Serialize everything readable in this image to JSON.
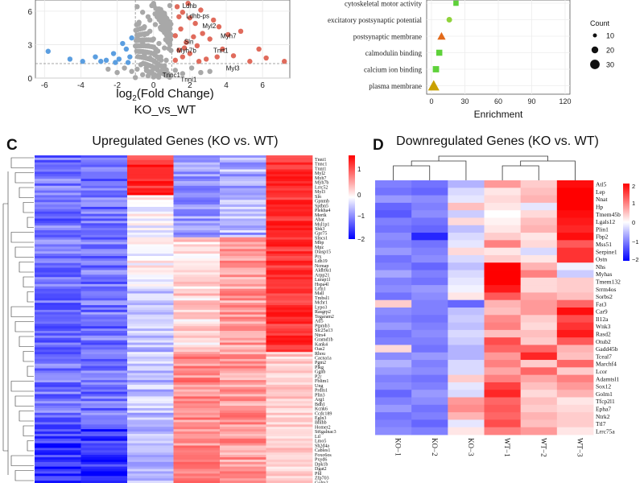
{
  "panel_labels": {
    "c": "C",
    "d": "D"
  },
  "chart_data": [
    {
      "type": "scatter",
      "name": "volcano",
      "xlabel_main": "log",
      "xlabel_sub": "2",
      "xlabel_rest": "(Fold Change)",
      "subtitle": "KO_vs_WT",
      "xticks": [
        "-6",
        "-4",
        "-2",
        "0",
        "2",
        "4",
        "6"
      ],
      "yticks": [
        "0",
        "3",
        "6"
      ],
      "xlim": [
        -6.5,
        7.5
      ],
      "ylim": [
        0,
        7
      ],
      "threshold_x": [
        -1,
        1
      ],
      "threshold_y": 1.3,
      "colors": {
        "up": "#e06b5c",
        "down": "#5b9ee0",
        "ns": "#a8a8a8"
      },
      "up_points": [
        [
          1.3,
          6.4
        ],
        [
          1.6,
          5.9
        ],
        [
          2.0,
          5.4
        ],
        [
          2.3,
          4.9
        ],
        [
          1.5,
          4.4
        ],
        [
          2.7,
          4.0
        ],
        [
          1.2,
          3.8
        ],
        [
          3.1,
          3.5
        ],
        [
          1.8,
          3.2
        ],
        [
          2.4,
          2.9
        ],
        [
          3.8,
          2.6
        ],
        [
          1.4,
          2.5
        ],
        [
          2.0,
          2.2
        ],
        [
          4.4,
          2.0
        ],
        [
          1.6,
          1.9
        ],
        [
          2.9,
          1.7
        ],
        [
          1.2,
          1.6
        ],
        [
          5.3,
          1.5
        ],
        [
          6.2,
          1.8
        ],
        [
          7.2,
          1.5
        ],
        [
          5.8,
          2.6
        ],
        [
          4.1,
          3.9
        ],
        [
          3.3,
          5.2
        ],
        [
          2.6,
          6.1
        ],
        [
          1.9,
          6.7
        ],
        [
          1.4,
          5.5
        ],
        [
          3.6,
          4.6
        ],
        [
          4.8,
          4.2
        ],
        [
          2.2,
          3.7
        ],
        [
          1.7,
          2.7
        ],
        [
          3.5,
          1.9
        ],
        [
          2.5,
          1.5
        ]
      ],
      "down_points": [
        [
          -5.8,
          2.4
        ],
        [
          -3.9,
          1.5
        ],
        [
          -3.2,
          1.9
        ],
        [
          -2.6,
          1.6
        ],
        [
          -2.2,
          2.2
        ],
        [
          -1.9,
          1.7
        ],
        [
          -1.5,
          2.6
        ],
        [
          -1.3,
          1.9
        ],
        [
          -1.7,
          3.1
        ],
        [
          -1.2,
          3.6
        ],
        [
          -2.9,
          1.5
        ],
        [
          -4.6,
          1.7
        ],
        [
          -1.4,
          1.4
        ],
        [
          -2.1,
          1.4
        ]
      ],
      "ns_points": [
        [
          -0.9,
          6.4
        ],
        [
          -0.6,
          5.9
        ],
        [
          -0.3,
          5.5
        ],
        [
          0.0,
          6.7
        ],
        [
          0.3,
          6.2
        ],
        [
          0.6,
          5.8
        ],
        [
          0.9,
          6.5
        ],
        [
          -0.8,
          5.0
        ],
        [
          -0.5,
          4.6
        ],
        [
          -0.2,
          4.2
        ],
        [
          0.1,
          4.8
        ],
        [
          0.4,
          4.4
        ],
        [
          0.7,
          4.0
        ],
        [
          -0.9,
          3.6
        ],
        [
          -0.6,
          3.2
        ],
        [
          -0.3,
          2.9
        ],
        [
          0.0,
          3.5
        ],
        [
          0.3,
          3.1
        ],
        [
          0.6,
          2.7
        ],
        [
          0.9,
          3.0
        ],
        [
          -0.8,
          2.4
        ],
        [
          -0.5,
          2.1
        ],
        [
          -0.2,
          1.8
        ],
        [
          0.1,
          2.3
        ],
        [
          0.4,
          1.9
        ],
        [
          0.7,
          1.6
        ],
        [
          -0.7,
          1.2
        ],
        [
          -0.4,
          0.9
        ],
        [
          -0.1,
          0.6
        ],
        [
          0.2,
          1.0
        ],
        [
          0.5,
          0.7
        ],
        [
          0.8,
          0.4
        ],
        [
          -0.6,
          0.3
        ],
        [
          -0.3,
          0.2
        ],
        [
          0.0,
          0.1
        ],
        [
          0.3,
          0.3
        ],
        [
          0.6,
          1.1
        ],
        [
          -0.9,
          0.8
        ],
        [
          -1.2,
          0.6
        ],
        [
          -1.6,
          0.9
        ],
        [
          -2.0,
          0.5
        ],
        [
          1.2,
          0.7
        ],
        [
          1.6,
          0.4
        ],
        [
          2.1,
          0.9
        ],
        [
          2.6,
          0.5
        ],
        [
          -2.5,
          0.8
        ],
        [
          3.1,
          0.6
        ],
        [
          -0.2,
          5.2
        ],
        [
          0.2,
          5.6
        ],
        [
          -0.5,
          3.9
        ]
      ],
      "labels": [
        {
          "text": "Ldhb",
          "x": 1.5,
          "y": 6.5
        },
        {
          "text": "Ldhb-ps",
          "x": 1.7,
          "y": 5.6
        },
        {
          "text": "Myl2",
          "x": 2.6,
          "y": 4.7
        },
        {
          "text": "Myh7",
          "x": 3.6,
          "y": 3.8
        },
        {
          "text": "Sln",
          "x": 1.6,
          "y": 3.3
        },
        {
          "text": "Myh7b",
          "x": 1.2,
          "y": 2.5
        },
        {
          "text": "Tnrt1",
          "x": 3.2,
          "y": 2.5
        },
        {
          "text": "Myl3",
          "x": 3.9,
          "y": 0.9
        },
        {
          "text": "Tnnc1",
          "x": 0.4,
          "y": 0.3
        },
        {
          "text": "Tnni1",
          "x": 1.4,
          "y": -0.1
        }
      ]
    },
    {
      "type": "scatter",
      "name": "enrichment-dot-plot",
      "xlabel": "Enrichment",
      "xticks": [
        "0",
        "30",
        "60",
        "90",
        "120"
      ],
      "xlim": [
        0,
        120
      ],
      "categories": [
        "cytoskeletal motor activity",
        "excitatory postsynaptic potential",
        "postsynaptic membrane",
        "calmodulin binding",
        "calcium ion binding",
        "plasma membrane"
      ],
      "points": [
        {
          "term": "cytoskeletal motor activity",
          "enrichment": 22,
          "count": 5,
          "shape": "square",
          "color": "#5ed13a"
        },
        {
          "term": "excitatory postsynaptic potential",
          "enrichment": 16,
          "count": 6,
          "shape": "circle",
          "color": "#8fd33b"
        },
        {
          "term": "postsynaptic membrane",
          "enrichment": 9,
          "count": 12,
          "shape": "triangle",
          "color": "#e26a1a"
        },
        {
          "term": "calmodulin binding",
          "enrichment": 7,
          "count": 8,
          "shape": "square",
          "color": "#5ed13a"
        },
        {
          "term": "calcium ion binding",
          "enrichment": 4,
          "count": 9,
          "shape": "square",
          "color": "#5ed13a"
        },
        {
          "term": "plasma membrane",
          "enrichment": 2,
          "count": 30,
          "shape": "triangle",
          "color": "#c9a000"
        }
      ],
      "legend": {
        "title": "Count",
        "items": [
          "10",
          "20",
          "30"
        ]
      }
    },
    {
      "type": "heatmap",
      "name": "upregulated-heatmap",
      "title": "Upregulated Genes (KO vs. WT)",
      "colorbar_ticks": [
        "1",
        "0",
        "−1",
        "−2"
      ],
      "columns": 6,
      "column_means": [
        -1.1,
        -1.0,
        0.2,
        -0.4,
        0.15,
        1.25
      ],
      "genes": [
        "Tnni1",
        "Tnnc1",
        "Tnnt1",
        "Myl2",
        "Myh7",
        "Myh7b",
        "Lrrc52",
        "Myl3",
        "Sln",
        "Gpnmb",
        "Sptbn5",
        "Plekha4",
        "Mertk",
        "Abat",
        "Msl1p1",
        "Shk3",
        "Gpr75",
        "Slncs1",
        "Mbp",
        "Mpz",
        "Diasp15",
        "Prx",
        "Ldh19",
        "Ncmap",
        "Aldh9a1",
        "Arpp21",
        "Lurap1l",
        "Hspa4l",
        "Lrfn1",
        "Mall",
        "Tmbsl1",
        "Mchr1",
        "Lypo3",
        "Rasgrp2",
        "Tegaram2",
        "Atl5",
        "Ptpmb3",
        "Slc25a13",
        "Ntrs4",
        "Gramd1b",
        "Kank4",
        "Oas2",
        "Rhou",
        "Cacna1a",
        "Pgm2",
        "Plkg",
        "Ggnb",
        "P2r",
        "Fblim1",
        "Ung",
        "Prdm1",
        "Plin3",
        "Arg1",
        "Bdh1",
        "Kcnk6",
        "Ccdc189",
        "Egln3",
        "Bhlhb",
        "Homer2",
        "St6galnac3",
        "Ltl",
        "Lmo5",
        "Sh2d4a",
        "Cables1",
        "Foxo6os",
        "Pxyd6",
        "Dpk1b",
        "Dgat2",
        "Pfd",
        "Zfp703",
        "Golm2"
      ]
    },
    {
      "type": "heatmap",
      "name": "downregulated-heatmap",
      "title": "Downregulated Genes (KO vs. WT)",
      "colorbar_ticks": [
        "2",
        "1",
        "0",
        "−1",
        "−2"
      ],
      "samples": [
        "KO−1",
        "KO−2",
        "KO−3",
        "WT−1",
        "WT−2",
        "WT−3"
      ],
      "genes": [
        "Atl5",
        "Lep",
        "Nnat",
        "Hp",
        "Tmem45b",
        "Lgals12",
        "Plin1",
        "Fbp2",
        "Mss51",
        "Serpine1",
        "Ostn",
        "Nhs",
        "Myhas",
        "Tmem132",
        "Srrm4os",
        "Sorbs2",
        "Fat3",
        "Car9",
        "Il12a",
        "Wnk3",
        "Rasd2",
        "Otub2",
        "Gadd45b",
        "Tceal7",
        "Marchf4",
        "Lcor",
        "Adamtsl1",
        "Sox12",
        "Golm1",
        "Tfcp2l1",
        "Epha7",
        "Ntrk2",
        "Ttl7",
        "Lrrc75a"
      ],
      "values": [
        [
          -1.0,
          -1.1,
          -0.6,
          0.8,
          0.4,
          1.9
        ],
        [
          -1.1,
          -1.2,
          -0.3,
          0.2,
          0.5,
          2.0
        ],
        [
          -0.8,
          -0.9,
          -0.2,
          0.3,
          0.6,
          2.0
        ],
        [
          -1.2,
          -1.0,
          0.5,
          0.2,
          -0.2,
          2.0
        ],
        [
          -1.3,
          -0.9,
          -0.4,
          0.0,
          0.3,
          1.9
        ],
        [
          -1.0,
          -1.1,
          0.3,
          0.1,
          0.5,
          1.8
        ],
        [
          -1.1,
          -1.2,
          -0.5,
          0.2,
          0.6,
          1.7
        ],
        [
          -0.9,
          -1.7,
          -0.3,
          0.4,
          0.2,
          1.9
        ],
        [
          -1.0,
          -1.1,
          -0.2,
          1.0,
          0.3,
          1.3
        ],
        [
          -0.8,
          -1.0,
          0.3,
          0.2,
          -0.3,
          1.6
        ],
        [
          -1.1,
          -0.9,
          -0.3,
          0.4,
          0.2,
          1.6
        ],
        [
          -1.0,
          -1.2,
          -0.5,
          2.0,
          0.6,
          -0.1
        ],
        [
          -0.7,
          -1.0,
          -0.3,
          2.0,
          1.0,
          -0.4
        ],
        [
          -1.0,
          -1.1,
          -0.2,
          2.0,
          0.3,
          0.4
        ],
        [
          -0.9,
          -0.8,
          -0.1,
          1.8,
          0.3,
          0.4
        ],
        [
          -1.1,
          -0.9,
          0.2,
          1.3,
          0.7,
          0.5
        ],
        [
          0.4,
          -1.0,
          -1.2,
          0.6,
          0.8,
          1.2
        ],
        [
          -0.9,
          -1.0,
          -0.5,
          0.5,
          0.8,
          1.9
        ],
        [
          -1.0,
          -1.1,
          -0.4,
          0.9,
          0.4,
          1.4
        ],
        [
          -0.8,
          -1.0,
          -0.5,
          1.0,
          0.3,
          1.6
        ],
        [
          -1.1,
          -0.9,
          -0.3,
          0.5,
          0.5,
          1.8
        ],
        [
          -1.0,
          -1.0,
          -0.4,
          1.4,
          0.4,
          1.3
        ],
        [
          0.3,
          -1.1,
          -0.6,
          1.2,
          1.2,
          0.6
        ],
        [
          -0.9,
          -0.8,
          -0.6,
          0.8,
          1.7,
          0.5
        ],
        [
          -0.6,
          -1.0,
          -0.3,
          1.0,
          0.4,
          1.2
        ],
        [
          -0.8,
          -0.9,
          -0.3,
          0.7,
          1.2,
          0.4
        ],
        [
          -1.0,
          -1.1,
          0.4,
          1.0,
          0.7,
          1.0
        ],
        [
          -0.9,
          -1.0,
          -0.2,
          1.5,
          0.5,
          0.8
        ],
        [
          -1.2,
          -0.8,
          -0.3,
          1.7,
          0.3,
          0.6
        ],
        [
          -1.0,
          -0.9,
          0.8,
          1.2,
          0.5,
          0.2
        ],
        [
          -0.8,
          -1.1,
          0.9,
          1.3,
          0.4,
          0.3
        ],
        [
          -1.1,
          -1.0,
          0.6,
          1.2,
          0.6,
          0.4
        ],
        [
          -1.0,
          -1.2,
          -0.2,
          1.4,
          0.5,
          0.4
        ],
        [
          -0.9,
          -1.0,
          0.2,
          1.0,
          0.8,
          0.2
        ]
      ]
    }
  ]
}
